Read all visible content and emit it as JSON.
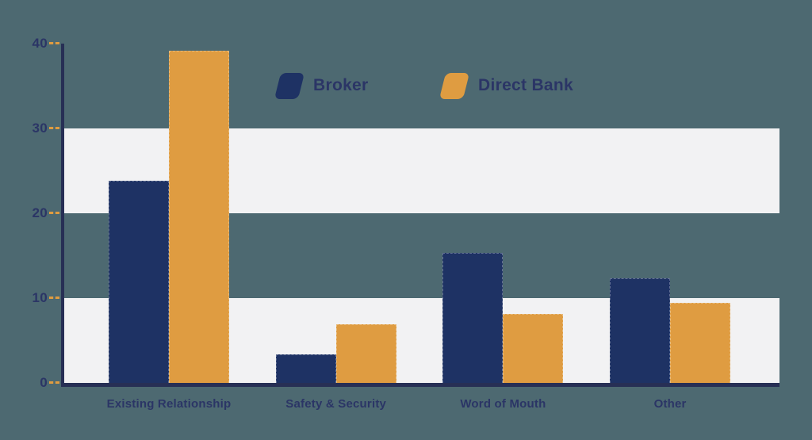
{
  "chart_data": {
    "type": "bar",
    "title": "",
    "categories": [
      "Existing Relationship",
      "Safety & Security",
      "Word of Mouth",
      "Other"
    ],
    "series": [
      {
        "name": "Broker",
        "color": "#1E3264",
        "values": [
          23.8,
          3.4,
          15.3,
          12.3
        ]
      },
      {
        "name": "Direct Bank",
        "color": "#DF9C41",
        "values": [
          39.2,
          6.9,
          8.1,
          9.4
        ]
      }
    ],
    "xlabel": "",
    "ylabel": "",
    "ylim": [
      0,
      40
    ],
    "yticks": [
      0,
      10,
      20,
      30,
      40
    ],
    "grid": "alternating horizontal bands",
    "band_ranges": [
      [
        0,
        10
      ],
      [
        20,
        30
      ]
    ],
    "legend_position": "top-center"
  },
  "legend": {
    "items": [
      {
        "label": "Broker",
        "color": "#1E3264"
      },
      {
        "label": "Direct Bank",
        "color": "#DF9C41"
      }
    ]
  },
  "colors": {
    "background": "#4D6971",
    "band": "#F2F2F3",
    "axis": "#272F55",
    "text": "#2B3566",
    "tick_mark": "#DF9C41"
  }
}
